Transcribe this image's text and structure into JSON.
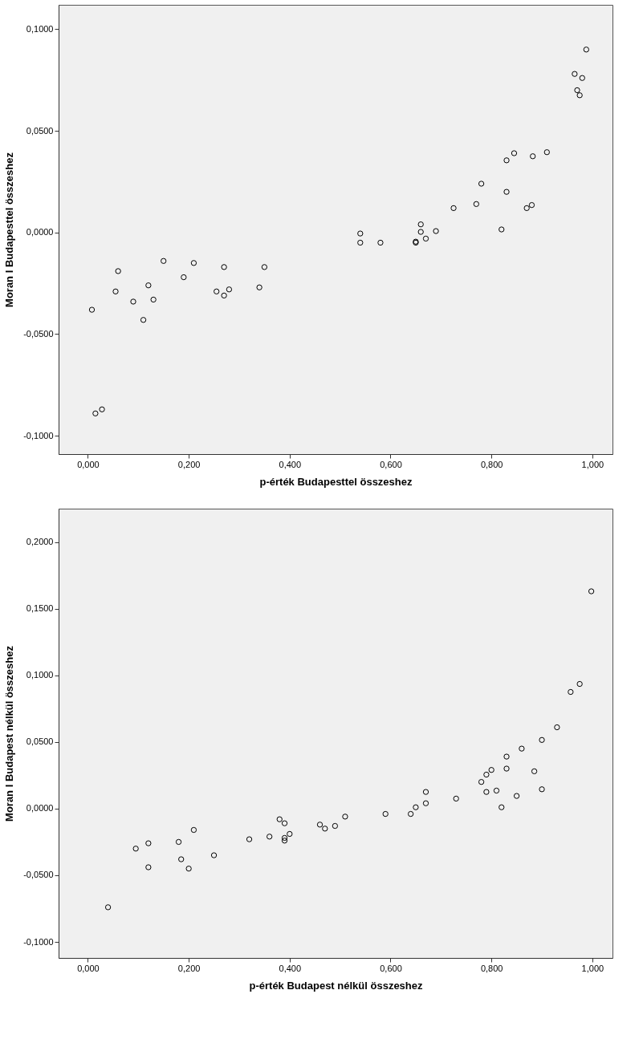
{
  "chart_data": [
    {
      "type": "scatter",
      "xlabel": "p-érték Budapesttel összeshez",
      "ylabel": "Moran I Budapesttel összeshez",
      "marker": "circle",
      "grid": false,
      "xlim": [
        -0.058,
        1.04
      ],
      "ylim": [
        -0.109,
        0.112
      ],
      "xticks": [
        {
          "value": 0,
          "label": "0,000"
        },
        {
          "value": 0.2,
          "label": "0,200"
        },
        {
          "value": 0.4,
          "label": "0,400"
        },
        {
          "value": 0.6,
          "label": "0,600"
        },
        {
          "value": 0.8,
          "label": "0,800"
        },
        {
          "value": 1,
          "label": "1,000"
        }
      ],
      "yticks": [
        {
          "value": -0.1,
          "label": "-0,1000"
        },
        {
          "value": -0.05,
          "label": "-0,0500"
        },
        {
          "value": 0,
          "label": "0,0000"
        },
        {
          "value": 0.05,
          "label": "0,0500"
        },
        {
          "value": 0.1,
          "label": "0,1000"
        }
      ],
      "series": [
        {
          "color": "#000000",
          "x": [
            0.008,
            0.015,
            0.028,
            0.055,
            0.06,
            0.09,
            0.11,
            0.12,
            0.13,
            0.15,
            0.19,
            0.21,
            0.255,
            0.27,
            0.27,
            0.28,
            0.34,
            0.35,
            0.54,
            0.54,
            0.58,
            0.65,
            0.65,
            0.66,
            0.66,
            0.67,
            0.69,
            0.725,
            0.77,
            0.78,
            0.82,
            0.83,
            0.83,
            0.845,
            0.87,
            0.88,
            0.882,
            0.91,
            0.965,
            0.97,
            0.975,
            0.98,
            0.988
          ],
          "values": [
            -0.038,
            -0.089,
            -0.087,
            -0.029,
            -0.019,
            -0.034,
            -0.043,
            -0.026,
            -0.033,
            -0.014,
            -0.022,
            -0.015,
            -0.029,
            -0.017,
            -0.031,
            -0.028,
            -0.027,
            -0.017,
            -0.0005,
            -0.005,
            -0.005,
            -0.005,
            -0.0045,
            0.004,
            0.0003,
            -0.003,
            0.0007,
            0.012,
            0.014,
            0.024,
            0.0015,
            0.02,
            0.0355,
            0.039,
            0.012,
            0.0135,
            0.0375,
            0.0395,
            0.078,
            0.07,
            0.0675,
            0.076,
            0.09
          ]
        }
      ]
    },
    {
      "type": "scatter",
      "xlabel": "p-érték Budapest nélkül összeshez",
      "ylabel": "Moran I Budapest nélkül összeshez",
      "marker": "circle",
      "grid": false,
      "xlim": [
        -0.058,
        1.04
      ],
      "ylim": [
        -0.112,
        0.225
      ],
      "xticks": [
        {
          "value": 0,
          "label": "0,000"
        },
        {
          "value": 0.2,
          "label": "0,200"
        },
        {
          "value": 0.4,
          "label": "0,400"
        },
        {
          "value": 0.6,
          "label": "0,600"
        },
        {
          "value": 0.8,
          "label": "0,800"
        },
        {
          "value": 1,
          "label": "1,000"
        }
      ],
      "yticks": [
        {
          "value": -0.1,
          "label": "-0,1000"
        },
        {
          "value": -0.05,
          "label": "-0,0500"
        },
        {
          "value": 0,
          "label": "0,0000"
        },
        {
          "value": 0.05,
          "label": "0,0500"
        },
        {
          "value": 0.1,
          "label": "0,1000"
        },
        {
          "value": 0.15,
          "label": "0,1500"
        },
        {
          "value": 0.2,
          "label": "0,2000"
        }
      ],
      "series": [
        {
          "color": "#000000",
          "x": [
            0.04,
            0.095,
            0.12,
            0.12,
            0.18,
            0.185,
            0.2,
            0.21,
            0.25,
            0.32,
            0.36,
            0.38,
            0.39,
            0.39,
            0.39,
            0.4,
            0.46,
            0.47,
            0.49,
            0.51,
            0.59,
            0.64,
            0.65,
            0.67,
            0.67,
            0.73,
            0.78,
            0.79,
            0.79,
            0.8,
            0.81,
            0.82,
            0.83,
            0.83,
            0.85,
            0.86,
            0.885,
            0.9,
            0.9,
            0.93,
            0.957,
            0.975,
            0.998
          ],
          "values": [
            -0.074,
            -0.03,
            -0.026,
            -0.044,
            -0.025,
            -0.038,
            -0.045,
            -0.016,
            -0.035,
            -0.023,
            -0.021,
            -0.008,
            -0.011,
            -0.022,
            -0.024,
            -0.019,
            -0.012,
            -0.015,
            -0.013,
            -0.006,
            -0.004,
            -0.004,
            0.001,
            0.004,
            0.0125,
            0.0075,
            0.02,
            0.0255,
            0.0125,
            0.029,
            0.0135,
            0.001,
            0.039,
            0.03,
            0.0095,
            0.045,
            0.028,
            0.0515,
            0.0145,
            0.061,
            0.0875,
            0.0935,
            0.163
          ]
        }
      ]
    }
  ]
}
